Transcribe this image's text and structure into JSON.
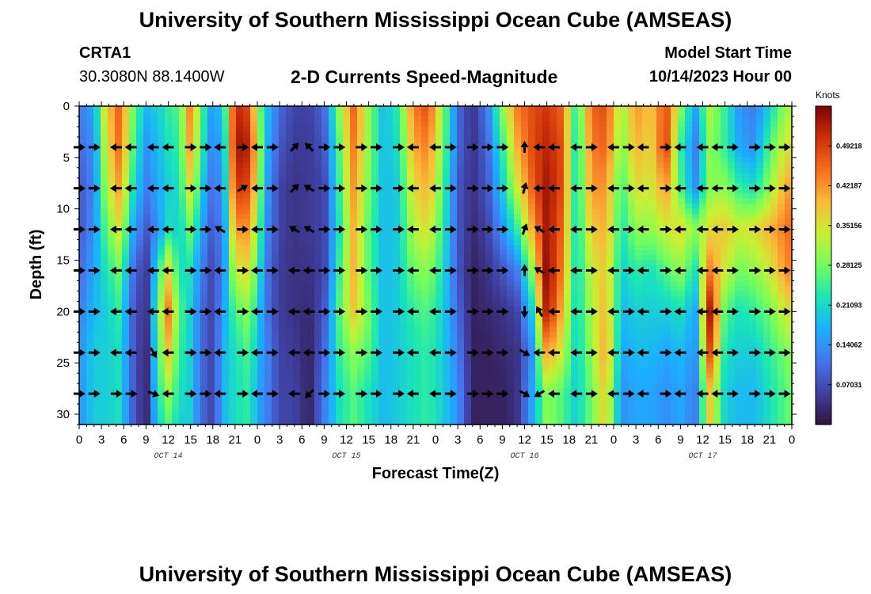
{
  "header": {
    "title": "University of Southern Mississippi Ocean Cube (AMSEAS)",
    "station": "CRTA1",
    "coords": "30.3080N  88.1400W",
    "subtitle": "2-D Currents Speed-Magnitude",
    "model_start_label": "Model Start Time",
    "model_start_value": "10/14/2023 Hour 00"
  },
  "footer": {
    "title": "University of Southern Mississippi Ocean Cube (AMSEAS)"
  },
  "chart_data": {
    "type": "heatmap",
    "title": "2-D Currents Speed-Magnitude",
    "xlabel": "Forecast Time(Z)",
    "ylabel": "Depth (ft)",
    "x_range_hours": [
      0,
      96
    ],
    "y_range_ft": [
      0,
      31
    ],
    "x_ticks": [
      "0",
      "3",
      "6",
      "9",
      "12",
      "15",
      "18",
      "21",
      "0",
      "3",
      "6",
      "9",
      "12",
      "15",
      "18",
      "21",
      "0",
      "3",
      "6",
      "9",
      "12",
      "15",
      "18",
      "21",
      "0",
      "3",
      "6",
      "9",
      "12",
      "15",
      "18",
      "21",
      "0"
    ],
    "y_ticks": [
      0,
      5,
      10,
      15,
      20,
      25,
      30
    ],
    "date_labels": [
      {
        "label": "OCT 14",
        "hour": 12
      },
      {
        "label": "OCT 15",
        "hour": 36
      },
      {
        "label": "OCT 16",
        "hour": 60
      },
      {
        "label": "OCT 17",
        "hour": 84
      }
    ],
    "colorbar": {
      "unit": "Knots",
      "ticks": [
        "0.49218",
        "0.42187",
        "0.35156",
        "0.28125",
        "0.21093",
        "0.14062",
        "0.07031"
      ],
      "min": 0.0,
      "max": 0.5625
    },
    "speed_knots": {
      "hours": [
        0,
        2,
        3.5,
        5.5,
        7,
        9,
        10.5,
        12,
        13.5,
        15,
        16.5,
        18,
        19.5,
        21,
        23,
        24,
        25.5,
        27,
        29,
        31,
        33,
        35,
        37,
        39,
        41,
        43,
        45,
        47,
        49,
        51,
        53,
        55,
        57,
        59,
        61,
        63,
        65,
        67,
        69,
        71,
        73,
        75,
        77,
        79,
        81,
        83,
        85,
        87,
        89,
        91,
        93,
        95,
        96
      ],
      "depths_ft": [
        0,
        4,
        8,
        12,
        16,
        20,
        24,
        28,
        31
      ],
      "values": [
        [
          0.12,
          0.1,
          0.08,
          0.08,
          0.1,
          0.12,
          0.14,
          0.14,
          0.14
        ],
        [
          0.16,
          0.14,
          0.13,
          0.14,
          0.16,
          0.18,
          0.2,
          0.2,
          0.2
        ],
        [
          0.36,
          0.33,
          0.3,
          0.26,
          0.22,
          0.2,
          0.2,
          0.2,
          0.2
        ],
        [
          0.47,
          0.46,
          0.42,
          0.36,
          0.28,
          0.24,
          0.22,
          0.22,
          0.22
        ],
        [
          0.3,
          0.28,
          0.24,
          0.18,
          0.12,
          0.1,
          0.1,
          0.1,
          0.1
        ],
        [
          0.18,
          0.14,
          0.12,
          0.08,
          0.04,
          0.03,
          0.02,
          0.02,
          0.02
        ],
        [
          0.2,
          0.18,
          0.16,
          0.14,
          0.22,
          0.26,
          0.24,
          0.22,
          0.2
        ],
        [
          0.24,
          0.22,
          0.2,
          0.22,
          0.36,
          0.44,
          0.38,
          0.3,
          0.26
        ],
        [
          0.26,
          0.24,
          0.22,
          0.2,
          0.22,
          0.26,
          0.24,
          0.22,
          0.2
        ],
        [
          0.44,
          0.42,
          0.36,
          0.28,
          0.22,
          0.2,
          0.2,
          0.2,
          0.2
        ],
        [
          0.26,
          0.24,
          0.2,
          0.16,
          0.12,
          0.1,
          0.1,
          0.1,
          0.1
        ],
        [
          0.14,
          0.12,
          0.1,
          0.08,
          0.06,
          0.06,
          0.06,
          0.06,
          0.06
        ],
        [
          0.22,
          0.18,
          0.16,
          0.14,
          0.14,
          0.16,
          0.18,
          0.18,
          0.18
        ],
        [
          0.52,
          0.54,
          0.5,
          0.42,
          0.34,
          0.26,
          0.22,
          0.22,
          0.22
        ],
        [
          0.48,
          0.52,
          0.48,
          0.42,
          0.36,
          0.3,
          0.26,
          0.24,
          0.24
        ],
        [
          0.3,
          0.34,
          0.32,
          0.28,
          0.24,
          0.2,
          0.18,
          0.16,
          0.16
        ],
        [
          0.18,
          0.16,
          0.14,
          0.12,
          0.1,
          0.1,
          0.12,
          0.12,
          0.12
        ],
        [
          0.1,
          0.08,
          0.06,
          0.06,
          0.05,
          0.05,
          0.06,
          0.06,
          0.06
        ],
        [
          0.06,
          0.05,
          0.04,
          0.04,
          0.04,
          0.04,
          0.05,
          0.06,
          0.06
        ],
        [
          0.06,
          0.05,
          0.05,
          0.05,
          0.04,
          0.03,
          0.02,
          0.02,
          0.02
        ],
        [
          0.1,
          0.08,
          0.06,
          0.06,
          0.06,
          0.08,
          0.1,
          0.12,
          0.12
        ],
        [
          0.3,
          0.26,
          0.24,
          0.22,
          0.24,
          0.26,
          0.24,
          0.22,
          0.22
        ],
        [
          0.46,
          0.44,
          0.42,
          0.4,
          0.4,
          0.38,
          0.3,
          0.26,
          0.26
        ],
        [
          0.3,
          0.3,
          0.28,
          0.26,
          0.26,
          0.28,
          0.26,
          0.22,
          0.22
        ],
        [
          0.18,
          0.18,
          0.18,
          0.18,
          0.18,
          0.18,
          0.18,
          0.18,
          0.18
        ],
        [
          0.24,
          0.22,
          0.2,
          0.2,
          0.2,
          0.2,
          0.2,
          0.2,
          0.2
        ],
        [
          0.44,
          0.4,
          0.36,
          0.32,
          0.28,
          0.24,
          0.22,
          0.22,
          0.22
        ],
        [
          0.48,
          0.44,
          0.4,
          0.36,
          0.3,
          0.26,
          0.24,
          0.24,
          0.24
        ],
        [
          0.3,
          0.28,
          0.26,
          0.24,
          0.22,
          0.2,
          0.2,
          0.2,
          0.2
        ],
        [
          0.1,
          0.1,
          0.08,
          0.08,
          0.08,
          0.1,
          0.12,
          0.14,
          0.14
        ],
        [
          0.04,
          0.04,
          0.04,
          0.03,
          0.02,
          0.02,
          0.02,
          0.02,
          0.02
        ],
        [
          0.12,
          0.1,
          0.08,
          0.06,
          0.04,
          0.03,
          0.02,
          0.02,
          0.02
        ],
        [
          0.3,
          0.24,
          0.2,
          0.14,
          0.08,
          0.04,
          0.03,
          0.02,
          0.02
        ],
        [
          0.44,
          0.4,
          0.34,
          0.24,
          0.12,
          0.06,
          0.04,
          0.04,
          0.04
        ],
        [
          0.48,
          0.48,
          0.46,
          0.4,
          0.3,
          0.2,
          0.14,
          0.16,
          0.16
        ],
        [
          0.5,
          0.52,
          0.54,
          0.54,
          0.56,
          0.54,
          0.42,
          0.3,
          0.3
        ],
        [
          0.46,
          0.48,
          0.48,
          0.46,
          0.44,
          0.4,
          0.34,
          0.26,
          0.26
        ],
        [
          0.22,
          0.2,
          0.2,
          0.2,
          0.2,
          0.2,
          0.2,
          0.2,
          0.2
        ],
        [
          0.46,
          0.44,
          0.42,
          0.38,
          0.34,
          0.32,
          0.3,
          0.28,
          0.28
        ],
        [
          0.48,
          0.46,
          0.42,
          0.4,
          0.38,
          0.4,
          0.42,
          0.38,
          0.38
        ],
        [
          0.3,
          0.28,
          0.24,
          0.22,
          0.2,
          0.18,
          0.16,
          0.14,
          0.14
        ],
        [
          0.42,
          0.4,
          0.36,
          0.3,
          0.24,
          0.2,
          0.18,
          0.16,
          0.16
        ],
        [
          0.38,
          0.36,
          0.34,
          0.3,
          0.22,
          0.2,
          0.18,
          0.16,
          0.16
        ],
        [
          0.48,
          0.5,
          0.42,
          0.34,
          0.26,
          0.2,
          0.16,
          0.14,
          0.14
        ],
        [
          0.3,
          0.24,
          0.26,
          0.36,
          0.3,
          0.22,
          0.18,
          0.16,
          0.16
        ],
        [
          0.16,
          0.12,
          0.14,
          0.3,
          0.22,
          0.16,
          0.14,
          0.12,
          0.12
        ],
        [
          0.32,
          0.3,
          0.3,
          0.36,
          0.44,
          0.54,
          0.48,
          0.38,
          0.38
        ],
        [
          0.24,
          0.24,
          0.3,
          0.38,
          0.34,
          0.26,
          0.22,
          0.2,
          0.2
        ],
        [
          0.14,
          0.16,
          0.24,
          0.34,
          0.28,
          0.22,
          0.2,
          0.18,
          0.18
        ],
        [
          0.12,
          0.14,
          0.22,
          0.36,
          0.3,
          0.24,
          0.2,
          0.18,
          0.18
        ],
        [
          0.2,
          0.26,
          0.3,
          0.4,
          0.34,
          0.28,
          0.24,
          0.22,
          0.22
        ],
        [
          0.3,
          0.34,
          0.4,
          0.44,
          0.42,
          0.34,
          0.28,
          0.26,
          0.26
        ],
        [
          0.32,
          0.36,
          0.42,
          0.46,
          0.44,
          0.36,
          0.3,
          0.28,
          0.28
        ]
      ]
    },
    "current_vectors": {
      "depths_ft": [
        4,
        8,
        12,
        16,
        20,
        24,
        28
      ],
      "hours": [
        0,
        2,
        5,
        7,
        10,
        12,
        15,
        17,
        19,
        22,
        24,
        26,
        29,
        31,
        33,
        35,
        38,
        40,
        43,
        45,
        48,
        50,
        53,
        55,
        57,
        60,
        62,
        64,
        67,
        69,
        72,
        74,
        76,
        79,
        81,
        84,
        86,
        88,
        91,
        93,
        95
      ],
      "direction_deg": [
        [
          90,
          90,
          270,
          270,
          270,
          270,
          90,
          90,
          270,
          90,
          270,
          90,
          45,
          315,
          90,
          90,
          90,
          90,
          90,
          270,
          270,
          90,
          90,
          90,
          90,
          0,
          270,
          270,
          270,
          90,
          270,
          90,
          270,
          90,
          270,
          270,
          270,
          90,
          90,
          90,
          90
        ],
        [
          90,
          90,
          270,
          270,
          270,
          270,
          90,
          90,
          270,
          60,
          270,
          90,
          45,
          300,
          90,
          90,
          90,
          90,
          90,
          270,
          270,
          90,
          90,
          90,
          90,
          15,
          270,
          270,
          270,
          90,
          270,
          90,
          270,
          90,
          270,
          270,
          270,
          90,
          90,
          90,
          90
        ],
        [
          90,
          90,
          270,
          270,
          270,
          270,
          90,
          90,
          300,
          90,
          270,
          90,
          300,
          300,
          90,
          90,
          90,
          90,
          90,
          270,
          270,
          90,
          90,
          90,
          90,
          20,
          300,
          270,
          270,
          90,
          270,
          90,
          270,
          90,
          270,
          270,
          270,
          90,
          90,
          90,
          90
        ],
        [
          90,
          90,
          270,
          270,
          270,
          270,
          90,
          90,
          270,
          90,
          270,
          90,
          270,
          270,
          90,
          90,
          90,
          90,
          90,
          270,
          270,
          90,
          90,
          90,
          90,
          0,
          300,
          270,
          270,
          90,
          270,
          90,
          270,
          90,
          270,
          270,
          270,
          90,
          90,
          90,
          90
        ],
        [
          90,
          90,
          270,
          270,
          270,
          270,
          90,
          90,
          270,
          90,
          270,
          90,
          270,
          270,
          90,
          90,
          90,
          90,
          90,
          270,
          270,
          90,
          90,
          90,
          90,
          180,
          330,
          270,
          270,
          90,
          270,
          90,
          270,
          90,
          270,
          270,
          270,
          90,
          90,
          90,
          90
        ],
        [
          90,
          90,
          270,
          270,
          150,
          270,
          90,
          90,
          270,
          90,
          270,
          90,
          270,
          270,
          90,
          90,
          90,
          90,
          90,
          270,
          270,
          90,
          90,
          90,
          90,
          120,
          270,
          270,
          270,
          90,
          270,
          90,
          270,
          90,
          270,
          270,
          270,
          90,
          90,
          90,
          90
        ],
        [
          90,
          90,
          90,
          90,
          110,
          270,
          90,
          90,
          270,
          90,
          270,
          90,
          270,
          225,
          90,
          90,
          90,
          90,
          90,
          270,
          270,
          90,
          90,
          90,
          90,
          120,
          240,
          270,
          270,
          90,
          270,
          90,
          270,
          90,
          270,
          270,
          270,
          90,
          90,
          90,
          90
        ]
      ]
    }
  }
}
